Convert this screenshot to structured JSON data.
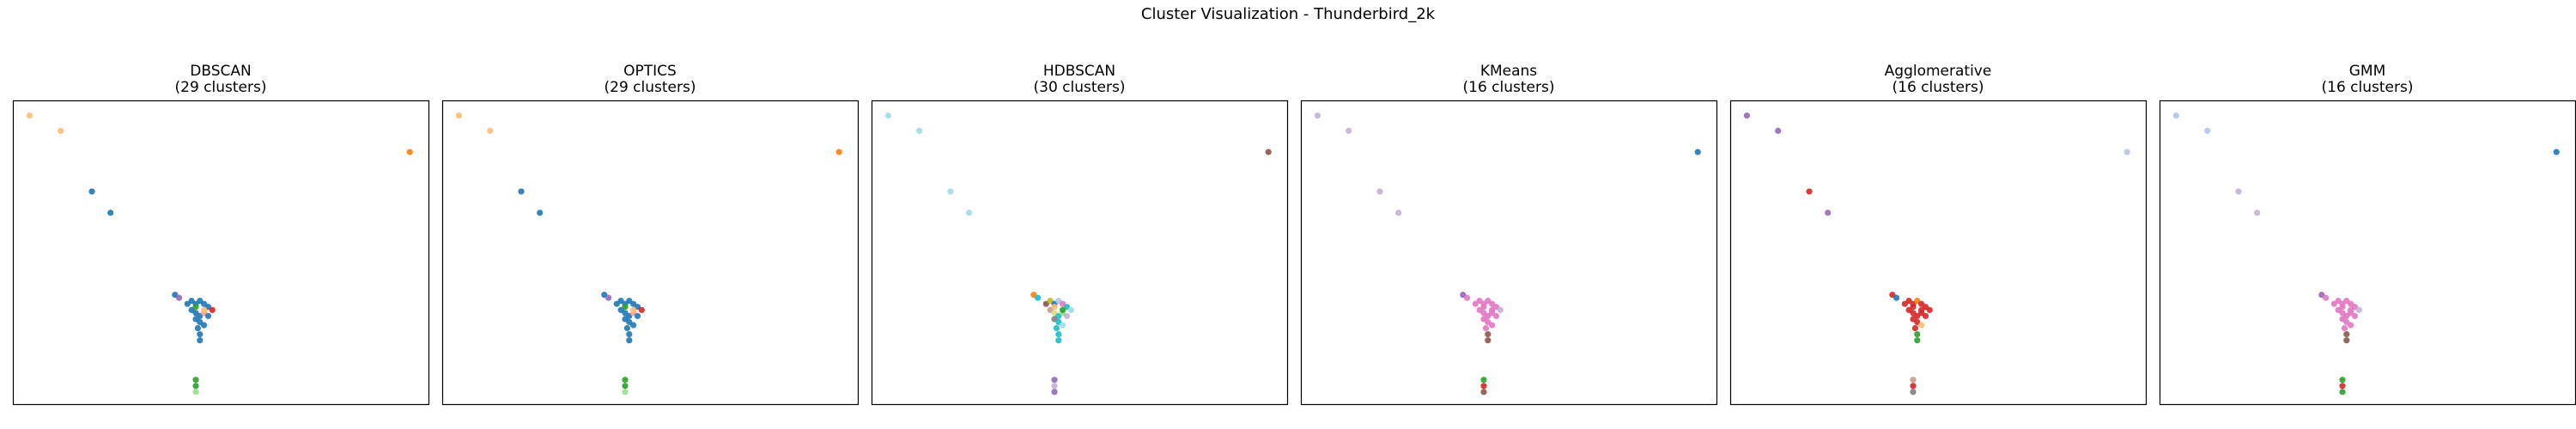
{
  "figure": {
    "title": "Cluster Visualization - Thunderbird_2k"
  },
  "chart_data": [
    {
      "type": "scatter",
      "title": "DBSCAN",
      "subtitle": "(29 clusters)",
      "xlabel": "",
      "ylabel": "",
      "xlim": [
        0,
        100
      ],
      "ylim": [
        0,
        100
      ],
      "grid": false,
      "axes_visible": false,
      "points": [
        {
          "x": 4,
          "y": 95,
          "c": "#ffbb78"
        },
        {
          "x": 11.5,
          "y": 90,
          "c": "#ffbb78"
        },
        {
          "x": 95.5,
          "y": 83,
          "c": "#ff7f0e"
        },
        {
          "x": 19,
          "y": 70,
          "c": "#1f77b4"
        },
        {
          "x": 23.5,
          "y": 63,
          "c": "#1f77b4"
        },
        {
          "x": 39,
          "y": 36,
          "c": "#1f77b4"
        },
        {
          "x": 40,
          "y": 35,
          "c": "#9467bd"
        },
        {
          "x": 42,
          "y": 33,
          "c": "#1f77b4"
        },
        {
          "x": 43,
          "y": 34,
          "c": "#1f77b4"
        },
        {
          "x": 44,
          "y": 33,
          "c": "#1f77b4"
        },
        {
          "x": 45,
          "y": 34,
          "c": "#1f77b4"
        },
        {
          "x": 46,
          "y": 33,
          "c": "#1f77b4"
        },
        {
          "x": 47,
          "y": 32,
          "c": "#1f77b4"
        },
        {
          "x": 48,
          "y": 31,
          "c": "#d62728"
        },
        {
          "x": 43,
          "y": 31,
          "c": "#1f77b4"
        },
        {
          "x": 44,
          "y": 30,
          "c": "#1f77b4"
        },
        {
          "x": 45,
          "y": 29,
          "c": "#1f77b4"
        },
        {
          "x": 46,
          "y": 30,
          "c": "#ff9896"
        },
        {
          "x": 47,
          "y": 29,
          "c": "#1f77b4"
        },
        {
          "x": 44,
          "y": 28,
          "c": "#1f77b4"
        },
        {
          "x": 45,
          "y": 27,
          "c": "#1f77b4"
        },
        {
          "x": 46,
          "y": 26,
          "c": "#1f77b4"
        },
        {
          "x": 44.5,
          "y": 25,
          "c": "#1f77b4"
        },
        {
          "x": 45,
          "y": 23,
          "c": "#1f77b4"
        },
        {
          "x": 45,
          "y": 21,
          "c": "#1f77b4"
        },
        {
          "x": 44,
          "y": 32,
          "c": "#2ca02c"
        },
        {
          "x": 46,
          "y": 31,
          "c": "#ffbb78"
        },
        {
          "x": 44,
          "y": 8,
          "c": "#2ca02c"
        },
        {
          "x": 44,
          "y": 6,
          "c": "#2ca02c"
        },
        {
          "x": 44,
          "y": 4,
          "c": "#98df8a"
        }
      ]
    },
    {
      "type": "scatter",
      "title": "OPTICS",
      "subtitle": "(29 clusters)",
      "xlabel": "",
      "ylabel": "",
      "xlim": [
        0,
        100
      ],
      "ylim": [
        0,
        100
      ],
      "grid": false,
      "axes_visible": false,
      "points": [
        {
          "x": 4,
          "y": 95,
          "c": "#ffbb78"
        },
        {
          "x": 11.5,
          "y": 90,
          "c": "#ffbb78"
        },
        {
          "x": 95.5,
          "y": 83,
          "c": "#ff7f0e"
        },
        {
          "x": 19,
          "y": 70,
          "c": "#1f77b4"
        },
        {
          "x": 23.5,
          "y": 63,
          "c": "#1f77b4"
        },
        {
          "x": 39,
          "y": 36,
          "c": "#1f77b4"
        },
        {
          "x": 40,
          "y": 35,
          "c": "#9467bd"
        },
        {
          "x": 42,
          "y": 33,
          "c": "#1f77b4"
        },
        {
          "x": 43,
          "y": 34,
          "c": "#1f77b4"
        },
        {
          "x": 44,
          "y": 33,
          "c": "#1f77b4"
        },
        {
          "x": 45,
          "y": 34,
          "c": "#1f77b4"
        },
        {
          "x": 46,
          "y": 33,
          "c": "#1f77b4"
        },
        {
          "x": 47,
          "y": 32,
          "c": "#1f77b4"
        },
        {
          "x": 48,
          "y": 31,
          "c": "#d62728"
        },
        {
          "x": 43,
          "y": 31,
          "c": "#1f77b4"
        },
        {
          "x": 44,
          "y": 30,
          "c": "#1f77b4"
        },
        {
          "x": 45,
          "y": 29,
          "c": "#1f77b4"
        },
        {
          "x": 46,
          "y": 30,
          "c": "#ff9896"
        },
        {
          "x": 47,
          "y": 29,
          "c": "#1f77b4"
        },
        {
          "x": 44,
          "y": 28,
          "c": "#1f77b4"
        },
        {
          "x": 45,
          "y": 27,
          "c": "#1f77b4"
        },
        {
          "x": 46,
          "y": 26,
          "c": "#1f77b4"
        },
        {
          "x": 44.5,
          "y": 25,
          "c": "#1f77b4"
        },
        {
          "x": 45,
          "y": 23,
          "c": "#1f77b4"
        },
        {
          "x": 45,
          "y": 21,
          "c": "#1f77b4"
        },
        {
          "x": 44,
          "y": 32,
          "c": "#2ca02c"
        },
        {
          "x": 46,
          "y": 31,
          "c": "#ffbb78"
        },
        {
          "x": 44,
          "y": 8,
          "c": "#2ca02c"
        },
        {
          "x": 44,
          "y": 6,
          "c": "#2ca02c"
        },
        {
          "x": 44,
          "y": 4,
          "c": "#98df8a"
        }
      ]
    },
    {
      "type": "scatter",
      "title": "HDBSCAN",
      "subtitle": "(30 clusters)",
      "xlabel": "",
      "ylabel": "",
      "xlim": [
        0,
        100
      ],
      "ylim": [
        0,
        100
      ],
      "grid": false,
      "axes_visible": false,
      "points": [
        {
          "x": 4,
          "y": 95,
          "c": "#9edae5"
        },
        {
          "x": 11.5,
          "y": 90,
          "c": "#9edae5"
        },
        {
          "x": 95.5,
          "y": 83,
          "c": "#8c564b"
        },
        {
          "x": 19,
          "y": 70,
          "c": "#9edae5"
        },
        {
          "x": 23.5,
          "y": 63,
          "c": "#9edae5"
        },
        {
          "x": 39,
          "y": 36,
          "c": "#ff7f0e"
        },
        {
          "x": 40,
          "y": 35,
          "c": "#17becf"
        },
        {
          "x": 42,
          "y": 33,
          "c": "#8c564b"
        },
        {
          "x": 43,
          "y": 34,
          "c": "#bcbd22"
        },
        {
          "x": 44,
          "y": 33,
          "c": "#1f77b4"
        },
        {
          "x": 45,
          "y": 34,
          "c": "#aec7e8"
        },
        {
          "x": 46,
          "y": 33,
          "c": "#e377c2"
        },
        {
          "x": 47,
          "y": 32,
          "c": "#17becf"
        },
        {
          "x": 48,
          "y": 31,
          "c": "#9edae5"
        },
        {
          "x": 43,
          "y": 31,
          "c": "#c49c94"
        },
        {
          "x": 44,
          "y": 30,
          "c": "#dbdb8d"
        },
        {
          "x": 45,
          "y": 29,
          "c": "#17becf"
        },
        {
          "x": 46,
          "y": 30,
          "c": "#98df8a"
        },
        {
          "x": 47,
          "y": 29,
          "c": "#c5b0d5"
        },
        {
          "x": 44,
          "y": 28,
          "c": "#7f7f7f"
        },
        {
          "x": 45,
          "y": 27,
          "c": "#17becf"
        },
        {
          "x": 46,
          "y": 26,
          "c": "#9edae5"
        },
        {
          "x": 44.5,
          "y": 25,
          "c": "#17becf"
        },
        {
          "x": 45,
          "y": 23,
          "c": "#17becf"
        },
        {
          "x": 45,
          "y": 21,
          "c": "#17becf"
        },
        {
          "x": 44,
          "y": 32,
          "c": "#ffbb78"
        },
        {
          "x": 46,
          "y": 31,
          "c": "#2ca02c"
        },
        {
          "x": 44,
          "y": 8,
          "c": "#9467bd"
        },
        {
          "x": 44,
          "y": 6,
          "c": "#c5b0d5"
        },
        {
          "x": 44,
          "y": 4,
          "c": "#9467bd"
        }
      ]
    },
    {
      "type": "scatter",
      "title": "KMeans",
      "subtitle": "(16 clusters)",
      "xlabel": "",
      "ylabel": "",
      "xlim": [
        0,
        100
      ],
      "ylim": [
        0,
        100
      ],
      "grid": false,
      "axes_visible": false,
      "points": [
        {
          "x": 4,
          "y": 95,
          "c": "#c5b0d5"
        },
        {
          "x": 11.5,
          "y": 90,
          "c": "#c5b0d5"
        },
        {
          "x": 95.5,
          "y": 83,
          "c": "#1f77b4"
        },
        {
          "x": 19,
          "y": 70,
          "c": "#c5b0d5"
        },
        {
          "x": 23.5,
          "y": 63,
          "c": "#c5b0d5"
        },
        {
          "x": 39,
          "y": 36,
          "c": "#9467bd"
        },
        {
          "x": 40,
          "y": 35,
          "c": "#e377c2"
        },
        {
          "x": 42,
          "y": 33,
          "c": "#e377c2"
        },
        {
          "x": 43,
          "y": 34,
          "c": "#e377c2"
        },
        {
          "x": 44,
          "y": 33,
          "c": "#e377c2"
        },
        {
          "x": 45,
          "y": 34,
          "c": "#e377c2"
        },
        {
          "x": 46,
          "y": 33,
          "c": "#e377c2"
        },
        {
          "x": 47,
          "y": 32,
          "c": "#e377c2"
        },
        {
          "x": 48,
          "y": 31,
          "c": "#c5b0d5"
        },
        {
          "x": 43,
          "y": 31,
          "c": "#e377c2"
        },
        {
          "x": 44,
          "y": 30,
          "c": "#e377c2"
        },
        {
          "x": 45,
          "y": 29,
          "c": "#e377c2"
        },
        {
          "x": 46,
          "y": 30,
          "c": "#e377c2"
        },
        {
          "x": 47,
          "y": 29,
          "c": "#e377c2"
        },
        {
          "x": 44,
          "y": 28,
          "c": "#e377c2"
        },
        {
          "x": 45,
          "y": 27,
          "c": "#e377c2"
        },
        {
          "x": 46,
          "y": 26,
          "c": "#e377c2"
        },
        {
          "x": 44.5,
          "y": 25,
          "c": "#e377c2"
        },
        {
          "x": 45,
          "y": 23,
          "c": "#8c564b"
        },
        {
          "x": 45,
          "y": 21,
          "c": "#8c564b"
        },
        {
          "x": 44,
          "y": 32,
          "c": "#e377c2"
        },
        {
          "x": 46,
          "y": 31,
          "c": "#e377c2"
        },
        {
          "x": 44,
          "y": 8,
          "c": "#2ca02c"
        },
        {
          "x": 44,
          "y": 6,
          "c": "#d62728"
        },
        {
          "x": 44,
          "y": 4,
          "c": "#8c564b"
        }
      ]
    },
    {
      "type": "scatter",
      "title": "Agglomerative",
      "subtitle": "(16 clusters)",
      "xlabel": "",
      "ylabel": "",
      "xlim": [
        0,
        100
      ],
      "ylim": [
        0,
        100
      ],
      "grid": false,
      "axes_visible": false,
      "points": [
        {
          "x": 4,
          "y": 95,
          "c": "#9467bd"
        },
        {
          "x": 11.5,
          "y": 90,
          "c": "#9467bd"
        },
        {
          "x": 95.5,
          "y": 83,
          "c": "#aec7e8"
        },
        {
          "x": 19,
          "y": 70,
          "c": "#d62728"
        },
        {
          "x": 23.5,
          "y": 63,
          "c": "#9467bd"
        },
        {
          "x": 39,
          "y": 36,
          "c": "#d62728"
        },
        {
          "x": 40,
          "y": 35,
          "c": "#1f77b4"
        },
        {
          "x": 42,
          "y": 33,
          "c": "#d62728"
        },
        {
          "x": 43,
          "y": 34,
          "c": "#d62728"
        },
        {
          "x": 44,
          "y": 33,
          "c": "#d62728"
        },
        {
          "x": 45,
          "y": 34,
          "c": "#ff7f0e"
        },
        {
          "x": 46,
          "y": 33,
          "c": "#d62728"
        },
        {
          "x": 47,
          "y": 32,
          "c": "#d62728"
        },
        {
          "x": 48,
          "y": 31,
          "c": "#d62728"
        },
        {
          "x": 43,
          "y": 31,
          "c": "#d62728"
        },
        {
          "x": 44,
          "y": 30,
          "c": "#d62728"
        },
        {
          "x": 45,
          "y": 29,
          "c": "#d62728"
        },
        {
          "x": 46,
          "y": 30,
          "c": "#d62728"
        },
        {
          "x": 47,
          "y": 29,
          "c": "#d62728"
        },
        {
          "x": 44,
          "y": 28,
          "c": "#d62728"
        },
        {
          "x": 45,
          "y": 27,
          "c": "#d62728"
        },
        {
          "x": 46,
          "y": 26,
          "c": "#ffbb78"
        },
        {
          "x": 44.5,
          "y": 25,
          "c": "#d62728"
        },
        {
          "x": 45,
          "y": 23,
          "c": "#2ca02c"
        },
        {
          "x": 45,
          "y": 21,
          "c": "#2ca02c"
        },
        {
          "x": 44,
          "y": 32,
          "c": "#d62728"
        },
        {
          "x": 46,
          "y": 31,
          "c": "#d62728"
        },
        {
          "x": 44,
          "y": 8,
          "c": "#c49c94"
        },
        {
          "x": 44,
          "y": 6,
          "c": "#d62728"
        },
        {
          "x": 44,
          "y": 4,
          "c": "#7f7f7f"
        }
      ]
    },
    {
      "type": "scatter",
      "title": "GMM",
      "subtitle": "(16 clusters)",
      "xlabel": "",
      "ylabel": "",
      "xlim": [
        0,
        100
      ],
      "ylim": [
        0,
        100
      ],
      "grid": false,
      "axes_visible": false,
      "points": [
        {
          "x": 4,
          "y": 95,
          "c": "#aec7e8"
        },
        {
          "x": 11.5,
          "y": 90,
          "c": "#aec7e8"
        },
        {
          "x": 95.5,
          "y": 83,
          "c": "#1f77b4"
        },
        {
          "x": 19,
          "y": 70,
          "c": "#c5b0d5"
        },
        {
          "x": 23.5,
          "y": 63,
          "c": "#c5b0d5"
        },
        {
          "x": 39,
          "y": 36,
          "c": "#9467bd"
        },
        {
          "x": 40,
          "y": 35,
          "c": "#e377c2"
        },
        {
          "x": 42,
          "y": 33,
          "c": "#e377c2"
        },
        {
          "x": 43,
          "y": 34,
          "c": "#e377c2"
        },
        {
          "x": 44,
          "y": 33,
          "c": "#e377c2"
        },
        {
          "x": 45,
          "y": 34,
          "c": "#e377c2"
        },
        {
          "x": 46,
          "y": 33,
          "c": "#e377c2"
        },
        {
          "x": 47,
          "y": 32,
          "c": "#e377c2"
        },
        {
          "x": 48,
          "y": 31,
          "c": "#c5b0d5"
        },
        {
          "x": 43,
          "y": 31,
          "c": "#e377c2"
        },
        {
          "x": 44,
          "y": 30,
          "c": "#e377c2"
        },
        {
          "x": 45,
          "y": 29,
          "c": "#e377c2"
        },
        {
          "x": 46,
          "y": 30,
          "c": "#e377c2"
        },
        {
          "x": 47,
          "y": 29,
          "c": "#e377c2"
        },
        {
          "x": 44,
          "y": 28,
          "c": "#e377c2"
        },
        {
          "x": 45,
          "y": 27,
          "c": "#e377c2"
        },
        {
          "x": 46,
          "y": 26,
          "c": "#e377c2"
        },
        {
          "x": 44.5,
          "y": 25,
          "c": "#e377c2"
        },
        {
          "x": 45,
          "y": 23,
          "c": "#8c564b"
        },
        {
          "x": 45,
          "y": 21,
          "c": "#8c564b"
        },
        {
          "x": 44,
          "y": 32,
          "c": "#e377c2"
        },
        {
          "x": 46,
          "y": 31,
          "c": "#e377c2"
        },
        {
          "x": 44,
          "y": 8,
          "c": "#2ca02c"
        },
        {
          "x": 44,
          "y": 6,
          "c": "#d62728"
        },
        {
          "x": 44,
          "y": 4,
          "c": "#2ca02c"
        }
      ]
    }
  ]
}
